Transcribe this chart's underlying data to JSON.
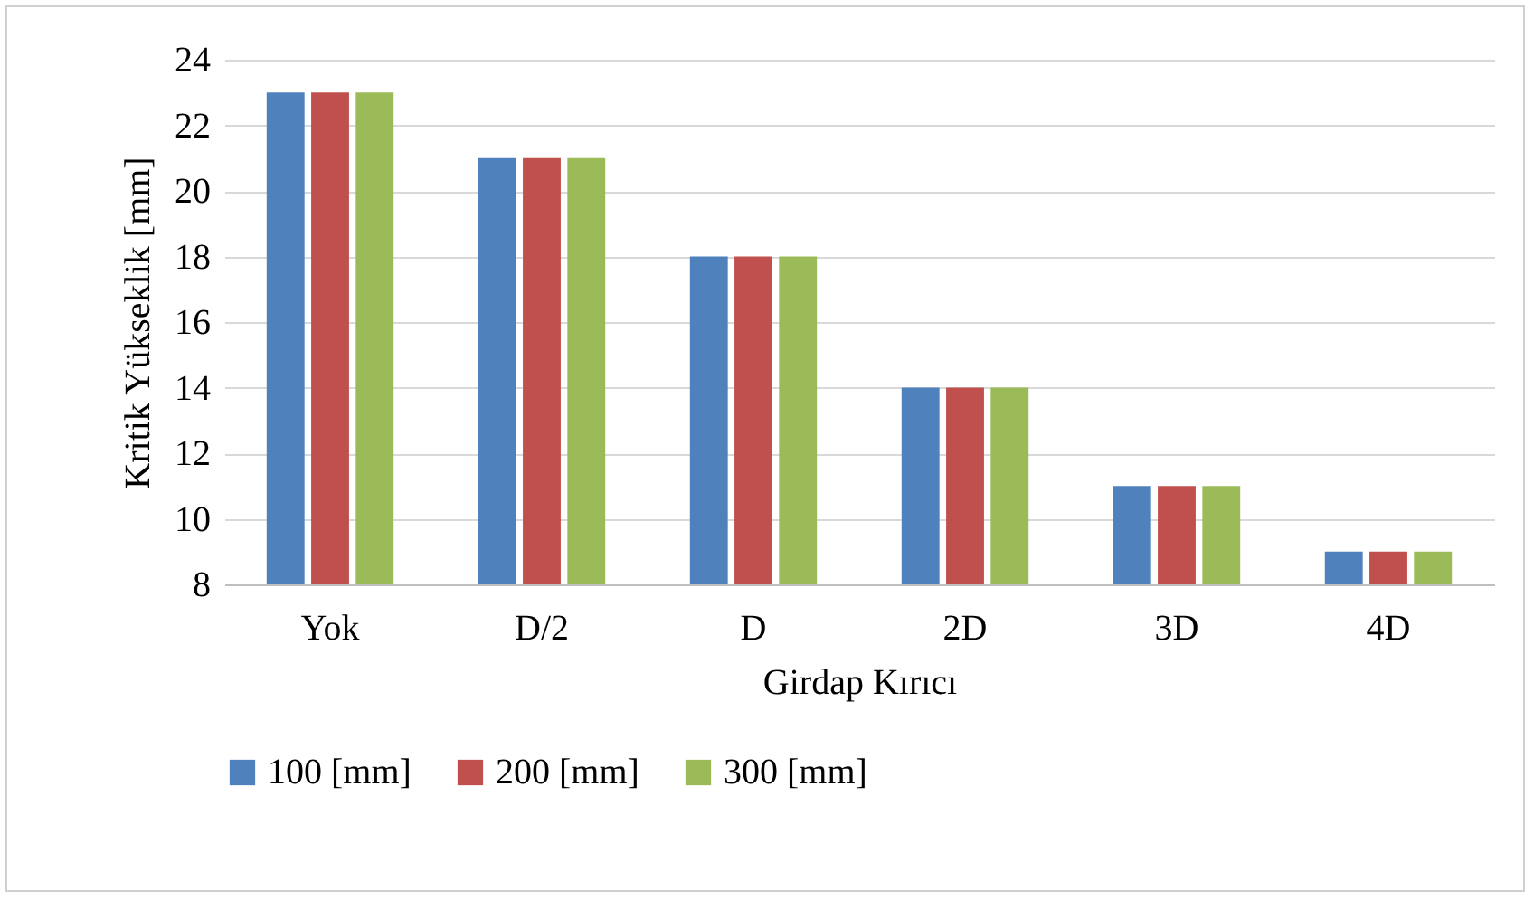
{
  "chart_data": {
    "type": "bar",
    "xlabel": "Girdap Kırıcı",
    "ylabel": "Kritik Yükseklik [mm]",
    "categories": [
      "Yok",
      "D/2",
      "D",
      "2D",
      "3D",
      "4D"
    ],
    "series": [
      {
        "name": "100 [mm]",
        "color": "#4f81bd",
        "values": [
          23,
          21,
          18,
          14,
          11,
          9
        ]
      },
      {
        "name": "200 [mm]",
        "color": "#c0504d",
        "values": [
          23,
          21,
          18,
          14,
          11,
          9
        ]
      },
      {
        "name": "300 [mm]",
        "color": "#9bbb59",
        "values": [
          23,
          21,
          18,
          14,
          11,
          9
        ]
      }
    ],
    "ylim": [
      8,
      24
    ],
    "yticks": [
      8,
      10,
      12,
      14,
      16,
      18,
      20,
      22,
      24
    ],
    "grid": "y",
    "legend": "bottom"
  }
}
